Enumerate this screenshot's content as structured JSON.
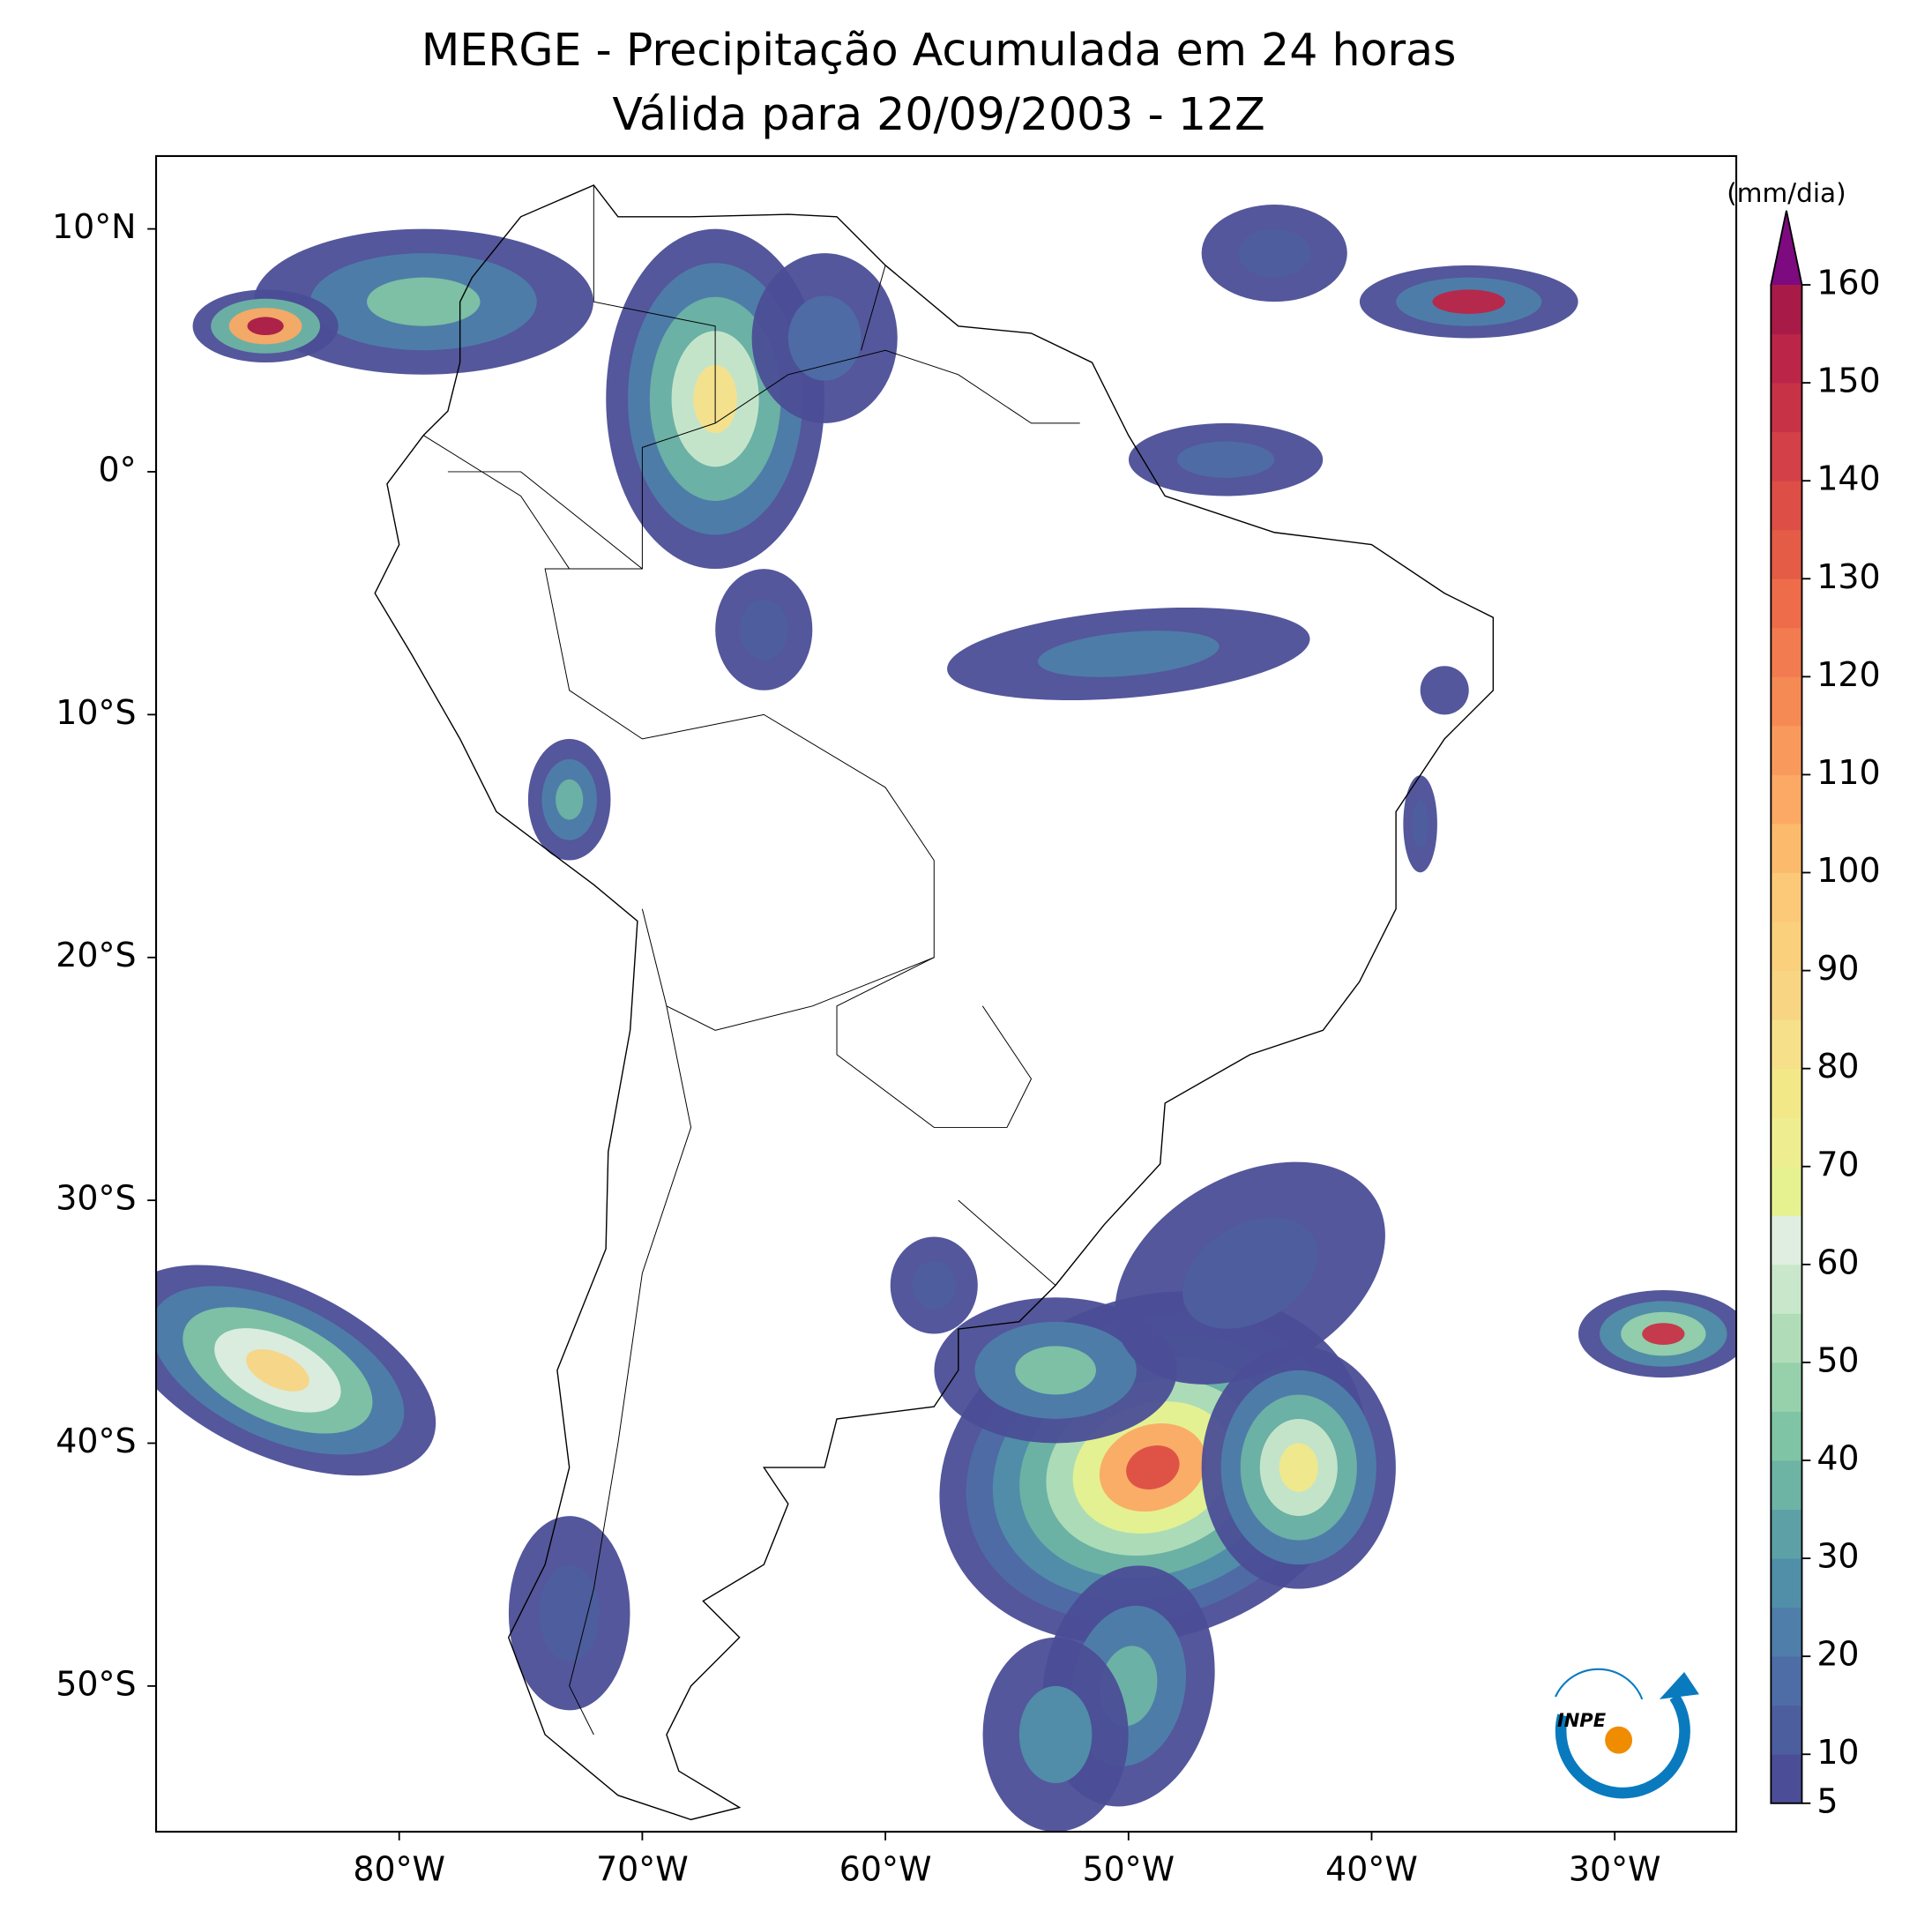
{
  "map": {
    "title": [
      "MERGE - Precipitação Acumulada em 24 horas",
      "Válida para 20/09/2003 - 12Z"
    ],
    "xlim": [
      -90,
      -25
    ],
    "ylim": [
      -56,
      13
    ],
    "xticks": [
      {
        "value": -80,
        "label": "80°W"
      },
      {
        "value": -70,
        "label": "70°W"
      },
      {
        "value": -60,
        "label": "60°W"
      },
      {
        "value": -50,
        "label": "50°W"
      },
      {
        "value": -40,
        "label": "40°W"
      },
      {
        "value": -30,
        "label": "30°W"
      }
    ],
    "yticks": [
      {
        "value": 10,
        "label": "10°N"
      },
      {
        "value": 0,
        "label": "0°"
      },
      {
        "value": -10,
        "label": "10°S"
      },
      {
        "value": -20,
        "label": "20°S"
      },
      {
        "value": -30,
        "label": "30°S"
      },
      {
        "value": -40,
        "label": "40°S"
      },
      {
        "value": -50,
        "label": "50°S"
      }
    ],
    "colorbar": {
      "label": "(mm/dia)",
      "levels": [
        5,
        10,
        15,
        20,
        25,
        30,
        35,
        40,
        45,
        50,
        55,
        60,
        65,
        70,
        75,
        80,
        85,
        90,
        95,
        100,
        105,
        110,
        115,
        120,
        125,
        130,
        135,
        140,
        145,
        150,
        155,
        160
      ],
      "colors": [
        "#4b4e96",
        "#4d5e9e",
        "#4e6da6",
        "#4e7ea9",
        "#518fa9",
        "#5da1a6",
        "#6db4a4",
        "#7fc4a4",
        "#96d1ac",
        "#b0ddb8",
        "#c9e7cb",
        "#dfeee0",
        "#e6f28f",
        "#eeee90",
        "#f2e888",
        "#f7e08a",
        "#f8d583",
        "#fbd07c",
        "#fbc978",
        "#fcbb6c",
        "#fba964",
        "#f99a5c",
        "#f68a55",
        "#f27b4f",
        "#ee6c4a",
        "#e55c46",
        "#dd4e46",
        "#d44047",
        "#c83247",
        "#bb2548",
        "#a81a48"
      ],
      "extend_color": "#7e0a80",
      "ticks": [
        5,
        10,
        20,
        30,
        40,
        50,
        60,
        70,
        80,
        90,
        100,
        110,
        120,
        130,
        140,
        150,
        160
      ]
    },
    "logo": "INPE"
  }
}
